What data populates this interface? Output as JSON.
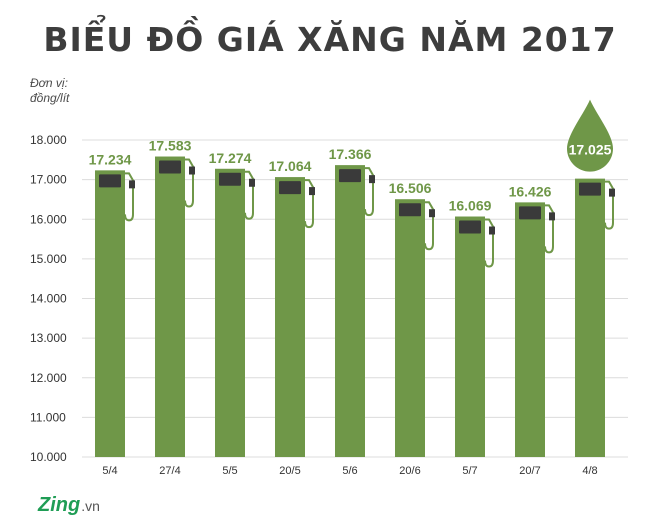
{
  "title": "BIỂU ĐỒ GIÁ XĂNG NĂM 2017",
  "unit_line1": "Đơn vị:",
  "unit_line2": "đồng/lít",
  "logo": {
    "brand": "Zing",
    "suffix": ".vn"
  },
  "colors": {
    "bar": "#6f9748",
    "cap": "#3a3a3a",
    "label": "#6f9748",
    "highlight_drop": "#6f9748",
    "grid": "#dcdcdc"
  },
  "chart_data": {
    "type": "bar",
    "title": "BIỂU ĐỒ GIÁ XĂNG NĂM 2017",
    "ylabel": "Đơn vị: đồng/lít",
    "xlabel": "",
    "ylim": [
      10000,
      18000
    ],
    "yticks": [
      "10.000",
      "11.000",
      "12.000",
      "13.000",
      "14.000",
      "15.000",
      "16.000",
      "17.000",
      "18.000"
    ],
    "ytick_values": [
      10000,
      11000,
      12000,
      13000,
      14000,
      15000,
      16000,
      17000,
      18000
    ],
    "grid": true,
    "categories": [
      "5/4",
      "27/4",
      "5/5",
      "20/5",
      "5/6",
      "20/6",
      "5/7",
      "20/7",
      "4/8"
    ],
    "values": [
      17234,
      17583,
      17274,
      17064,
      17366,
      16506,
      16069,
      16426,
      17025
    ],
    "value_labels": [
      "17.234",
      "17.583",
      "17.274",
      "17.064",
      "17.366",
      "16.506",
      "16.069",
      "16.426",
      "17.025"
    ],
    "highlight_index": 8
  }
}
